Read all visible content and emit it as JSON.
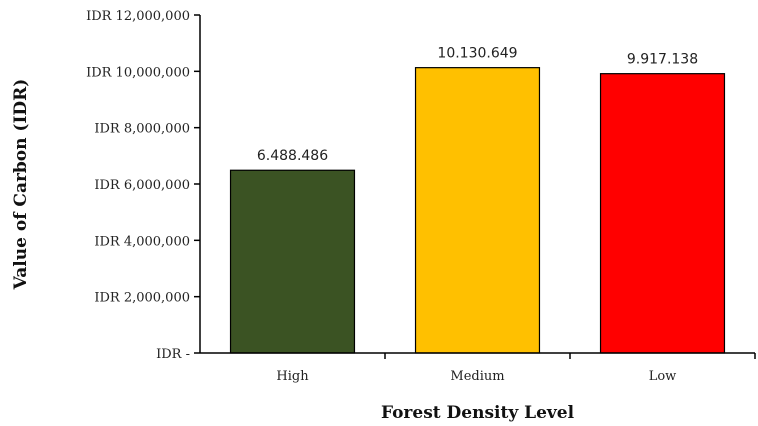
{
  "chart_data": {
    "type": "bar",
    "title": "",
    "xlabel": "Forest Density Level",
    "ylabel": "Value of Carbon (IDR)",
    "categories": [
      "High",
      "Medium",
      "Low"
    ],
    "values": [
      6488486,
      10130649,
      9917138
    ],
    "data_labels": [
      "6.488.486",
      "10.130.649",
      "9.917.138"
    ],
    "bar_colors": [
      "#3b5323",
      "#ffc000",
      "#ff0000"
    ],
    "ylim": [
      0,
      12000000
    ],
    "yticks": [
      0,
      2000000,
      4000000,
      6000000,
      8000000,
      10000000,
      12000000
    ],
    "ytick_labels": [
      "IDR -",
      "IDR 2,000,000",
      "IDR 4,000,000",
      "IDR 6,000,000",
      "IDR 8,000,000",
      "IDR 10,000,000",
      "IDR 12,000,000"
    ],
    "grid": false,
    "legend": "none"
  }
}
